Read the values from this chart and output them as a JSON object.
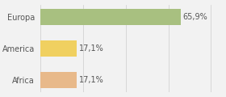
{
  "categories": [
    "Africa",
    "America",
    "Europa"
  ],
  "values": [
    17.1,
    17.1,
    65.9
  ],
  "colors": [
    "#e8b98a",
    "#f0d060",
    "#a8c080"
  ],
  "labels": [
    "17,1%",
    "17,1%",
    "65,9%"
  ],
  "background_color": "#f2f2f2",
  "bar_height": 0.5,
  "xlim": [
    0,
    85
  ],
  "label_fontsize": 7.0,
  "tick_fontsize": 7.0
}
